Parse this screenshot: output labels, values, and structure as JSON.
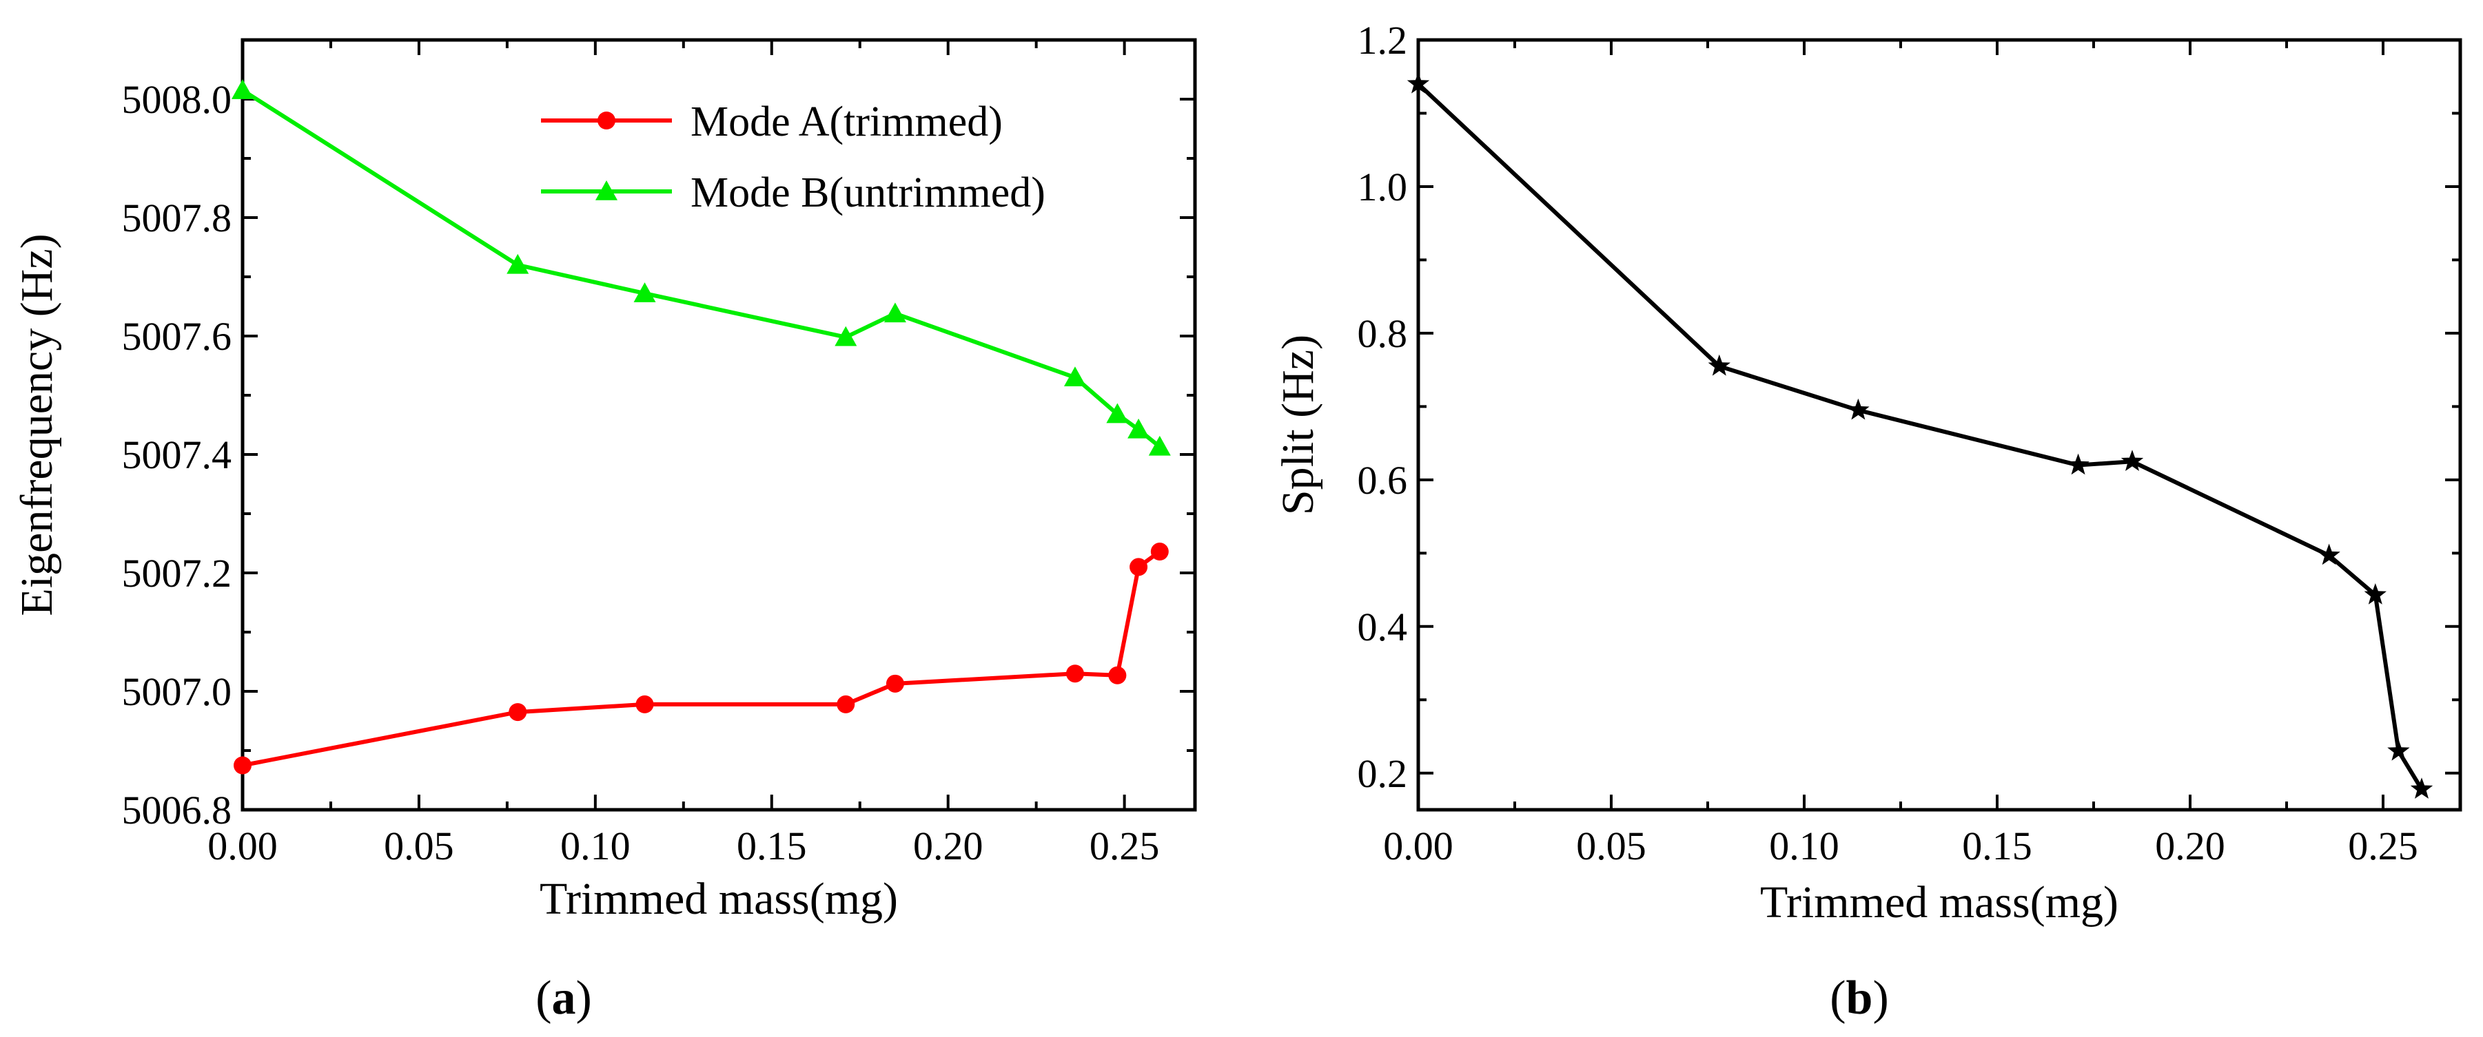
{
  "chart_data": [
    {
      "type": "line",
      "panel_label": "a",
      "xlabel": "Trimmed mass(mg)",
      "ylabel": "Eigenfrequency (Hz)",
      "xlim": [
        0.0,
        0.27
      ],
      "ylim": [
        5006.8,
        5008.1
      ],
      "xticks": [
        "0.00",
        "0.05",
        "0.10",
        "0.15",
        "0.20",
        "0.25"
      ],
      "yticks": [
        "5006.8",
        "5007.0",
        "5007.2",
        "5007.4",
        "5007.6",
        "5007.8",
        "5008.0"
      ],
      "legend_position": "top-right",
      "series": [
        {
          "name": "Mode A(trimmed)",
          "color": "#ff0000",
          "marker": "circle",
          "x": [
            0.0,
            0.078,
            0.114,
            0.171,
            0.185,
            0.236,
            0.248,
            0.254,
            0.26
          ],
          "y": [
            5006.875,
            5006.965,
            5006.978,
            5006.978,
            5007.013,
            5007.03,
            5007.027,
            5007.21,
            5007.236
          ]
        },
        {
          "name": "Mode B(untrimmed)",
          "color": "#00ee00",
          "marker": "triangle",
          "x": [
            0.0,
            0.078,
            0.114,
            0.171,
            0.185,
            0.236,
            0.248,
            0.254,
            0.26
          ],
          "y": [
            5008.015,
            5007.72,
            5007.672,
            5007.598,
            5007.638,
            5007.53,
            5007.468,
            5007.442,
            5007.413
          ]
        }
      ]
    },
    {
      "type": "line",
      "panel_label": "b",
      "xlabel": "Trimmed mass(mg)",
      "ylabel": "Split (Hz)",
      "xlim": [
        0.0,
        0.27
      ],
      "ylim": [
        0.15,
        1.2
      ],
      "xticks": [
        "0.00",
        "0.05",
        "0.10",
        "0.15",
        "0.20",
        "0.25"
      ],
      "yticks": [
        "0.2",
        "0.4",
        "0.6",
        "0.8",
        "1.0",
        "1.2"
      ],
      "series": [
        {
          "name": "Split",
          "color": "#000000",
          "marker": "star",
          "x": [
            0.0,
            0.078,
            0.114,
            0.171,
            0.185,
            0.236,
            0.248,
            0.254,
            0.26
          ],
          "y": [
            1.14,
            0.755,
            0.695,
            0.62,
            0.625,
            0.497,
            0.443,
            0.23,
            0.178
          ]
        }
      ]
    }
  ],
  "captions": {
    "a": "a",
    "b": "b"
  }
}
